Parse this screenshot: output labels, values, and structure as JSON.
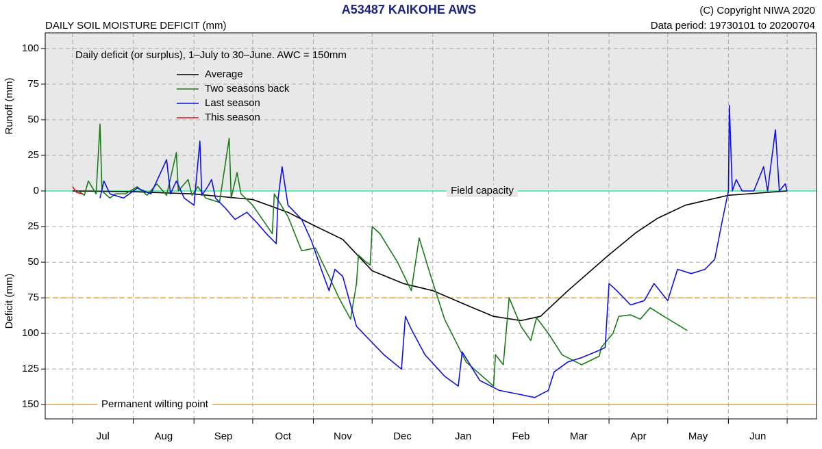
{
  "chart_data": {
    "type": "line",
    "title": "A53487  KAIKOHE AWS",
    "subtitle": "DAILY SOIL MOISTURE DEFICIT (mm)",
    "copyright": "(C) Copyright NIWA  2020",
    "data_period": "Data period:  19730101  to  20200704",
    "annotation": "Daily deficit (or surplus), 1–July to 30–June.  AWC = 150mm",
    "ylabel_top": "Runoff (mm)",
    "ylabel_bottom": "Deficit (mm)",
    "categories": [
      "Jul",
      "Aug",
      "Sep",
      "Oct",
      "Nov",
      "Dec",
      "Jan",
      "Feb",
      "Mar",
      "Apr",
      "May",
      "Jun"
    ],
    "xlim": [
      -14,
      380
    ],
    "xticks": [
      0,
      31,
      62,
      92,
      123,
      153,
      184,
      215,
      243,
      274,
      304,
      335,
      365
    ],
    "ylim": [
      -160,
      111
    ],
    "yticks": [
      100,
      75,
      50,
      25,
      0,
      {
        "value": -25,
        "label": "25"
      },
      {
        "value": -50,
        "label": "50"
      },
      {
        "value": -75,
        "label": "75"
      },
      {
        "value": -100,
        "label": "100"
      },
      {
        "value": -125,
        "label": "125"
      },
      {
        "value": -150,
        "label": "150"
      }
    ],
    "grid": true,
    "legend": "upper left",
    "reference_lines": [
      {
        "value": 0,
        "label": "Field capacity",
        "color": "#33e89a",
        "dash": false
      },
      {
        "value": -75,
        "color": "#f0a020",
        "dash": true
      },
      {
        "value": -150,
        "label": "Permanent wilting point",
        "color": "#f0a020",
        "dash": false
      }
    ],
    "series": [
      {
        "name": "Average",
        "color": "#000000",
        "x": [
          0,
          31,
          61,
          92,
          110,
          123,
          138,
          153,
          169,
          184,
          201,
          215,
          229,
          239,
          253,
          273,
          288,
          299,
          313,
          335,
          365
        ],
        "values": [
          0,
          -0.5,
          -2,
          -6,
          -15,
          -24,
          -34,
          -56,
          -65,
          -70,
          -80,
          -88,
          -91,
          -88,
          -70,
          -46,
          -29,
          -19,
          -10,
          -3,
          0
        ]
      },
      {
        "name": "Two seasons back",
        "color": "#1a7a1a",
        "x": [
          3,
          6,
          8,
          12,
          14,
          15,
          19,
          22,
          27,
          33,
          38,
          43,
          48,
          53,
          54,
          59,
          61,
          64,
          68,
          75,
          80,
          81,
          84,
          86,
          92,
          97,
          102,
          103,
          110,
          117,
          124,
          131,
          136,
          142,
          145,
          146,
          150,
          152,
          153,
          157,
          166,
          173,
          177,
          183,
          190,
          201,
          215,
          216,
          220,
          223,
          229,
          234,
          237,
          243,
          250,
          260,
          269,
          270,
          276,
          279,
          285,
          290,
          295,
          302,
          314
        ],
        "values": [
          0,
          -3,
          7,
          -2,
          47,
          0,
          -5,
          -2,
          -2,
          3,
          -3,
          5,
          -3,
          27,
          0,
          8,
          -3,
          3,
          -5,
          -8,
          37,
          -5,
          13,
          -2,
          -10,
          -20,
          -30,
          -2,
          -18,
          -42,
          -40,
          -60,
          -75,
          -90,
          -65,
          -45,
          -50,
          -52,
          -25,
          -30,
          -50,
          -70,
          -33,
          -60,
          -90,
          -120,
          -137,
          -115,
          -122,
          -75,
          -95,
          -105,
          -89,
          -100,
          -115,
          -122,
          -116,
          -110,
          -100,
          -88,
          -87,
          -90,
          -82,
          -88,
          -98
        ]
      },
      {
        "name": "Last season",
        "color": "#1010e0",
        "x": [
          14,
          16,
          19,
          26,
          33,
          40,
          48,
          50,
          53,
          57,
          62,
          65,
          66,
          69,
          71,
          73,
          78,
          83,
          89,
          94,
          99,
          104,
          105,
          107,
          110,
          117,
          122,
          127,
          131,
          134,
          138,
          145,
          152,
          159,
          168,
          170,
          173,
          180,
          190,
          197,
          199,
          208,
          218,
          229,
          236,
          243,
          246,
          253,
          260,
          267,
          272,
          274,
          278,
          285,
          292,
          297,
          304,
          309,
          316,
          323,
          328,
          332,
          335,
          335.5,
          337,
          339,
          342,
          348,
          353,
          355,
          359,
          361,
          364,
          365
        ],
        "values": [
          -5,
          7,
          -2,
          -5,
          2,
          -2,
          22,
          -2,
          7,
          -5,
          -10,
          35,
          -3,
          3,
          8,
          -5,
          -12,
          -20,
          -15,
          -22,
          -30,
          -37,
          -5,
          17,
          -10,
          -20,
          -35,
          -55,
          -70,
          -55,
          -60,
          -95,
          -105,
          -115,
          -125,
          -88,
          -97,
          -115,
          -130,
          -137,
          -113,
          -133,
          -140,
          -143,
          -145,
          -140,
          -127,
          -120,
          -117,
          -113,
          -110,
          -65,
          -70,
          -80,
          -77,
          -65,
          -77,
          -55,
          -58,
          -55,
          -48,
          -20,
          0,
          60,
          0,
          8,
          0,
          0,
          17,
          0,
          43,
          0,
          5,
          0
        ]
      },
      {
        "name": "This season",
        "color": "#e01010",
        "x": [
          0,
          2,
          5
        ],
        "values": [
          3,
          -1,
          -2
        ]
      }
    ]
  }
}
